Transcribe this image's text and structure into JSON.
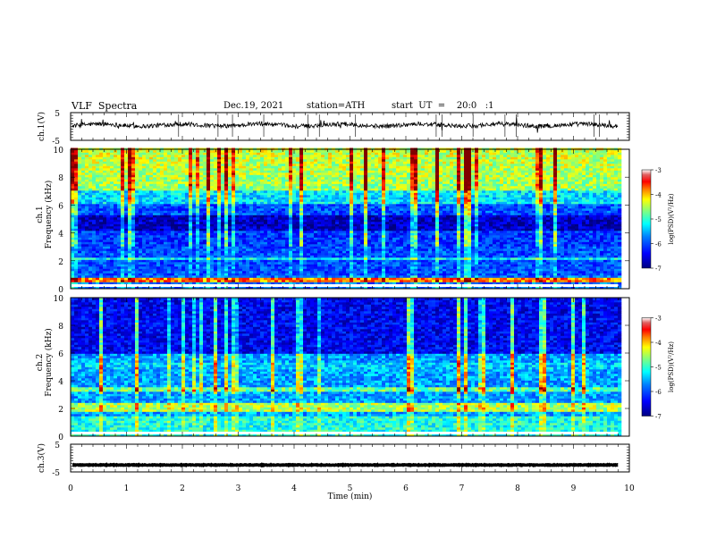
{
  "header": {
    "title": "VLF  Spectra",
    "date": "Dec.19, 2021",
    "station": "station=ATH",
    "start_ut": "start  UT  =    20:0   :1"
  },
  "chart_data": [
    {
      "type": "line",
      "name": "ch1-waveform",
      "ylabel": "ch.1(V)",
      "ylim": [
        -5,
        5
      ],
      "yticks": [
        "5",
        "-5"
      ],
      "xlim": [
        0,
        10
      ],
      "baseline_v": 0.5
    },
    {
      "type": "heatmap",
      "name": "ch1-spectrogram",
      "ylabel": "ch.1\nFrequency  (kHz)",
      "xlim": [
        0,
        10
      ],
      "ylim": [
        0,
        10
      ],
      "yticks": [
        "0",
        "2",
        "4",
        "6",
        "8",
        "10"
      ],
      "data_end_min": 9.8,
      "colorbar": {
        "label": "log(PSD)(V²/Hz)",
        "ticks": [
          "-3",
          "-4",
          "-5",
          "-6",
          "-7"
        ],
        "range": [
          -7,
          -3
        ]
      }
    },
    {
      "type": "heatmap",
      "name": "ch2-spectrogram",
      "ylabel": "ch.2\nFrequency  (kHz)",
      "xlim": [
        0,
        10
      ],
      "ylim": [
        0,
        10
      ],
      "yticks": [
        "0",
        "2",
        "4",
        "6",
        "8",
        "10"
      ],
      "data_end_min": 9.8,
      "colorbar": {
        "label": "log(PSD)(V²/Hz)",
        "ticks": [
          "-3",
          "-4",
          "-5",
          "-6",
          "-7"
        ],
        "range": [
          -7,
          -3
        ]
      }
    },
    {
      "type": "line",
      "name": "ch3-waveform",
      "ylabel": "ch.3(V)",
      "ylim": [
        -5,
        5
      ],
      "yticks": [
        "5",
        "-5"
      ],
      "xlim": [
        0,
        10
      ],
      "baseline_v": -2.5,
      "xlabel": "Time  (min)",
      "xticks": [
        "0",
        "1",
        "2",
        "3",
        "4",
        "5",
        "6",
        "7",
        "8",
        "9",
        "10"
      ]
    }
  ],
  "colors": {
    "jet": [
      "#000080",
      "#0000ff",
      "#0080ff",
      "#00ffff",
      "#80ff80",
      "#ffff00",
      "#ff8000",
      "#ff0000",
      "#800000"
    ]
  }
}
